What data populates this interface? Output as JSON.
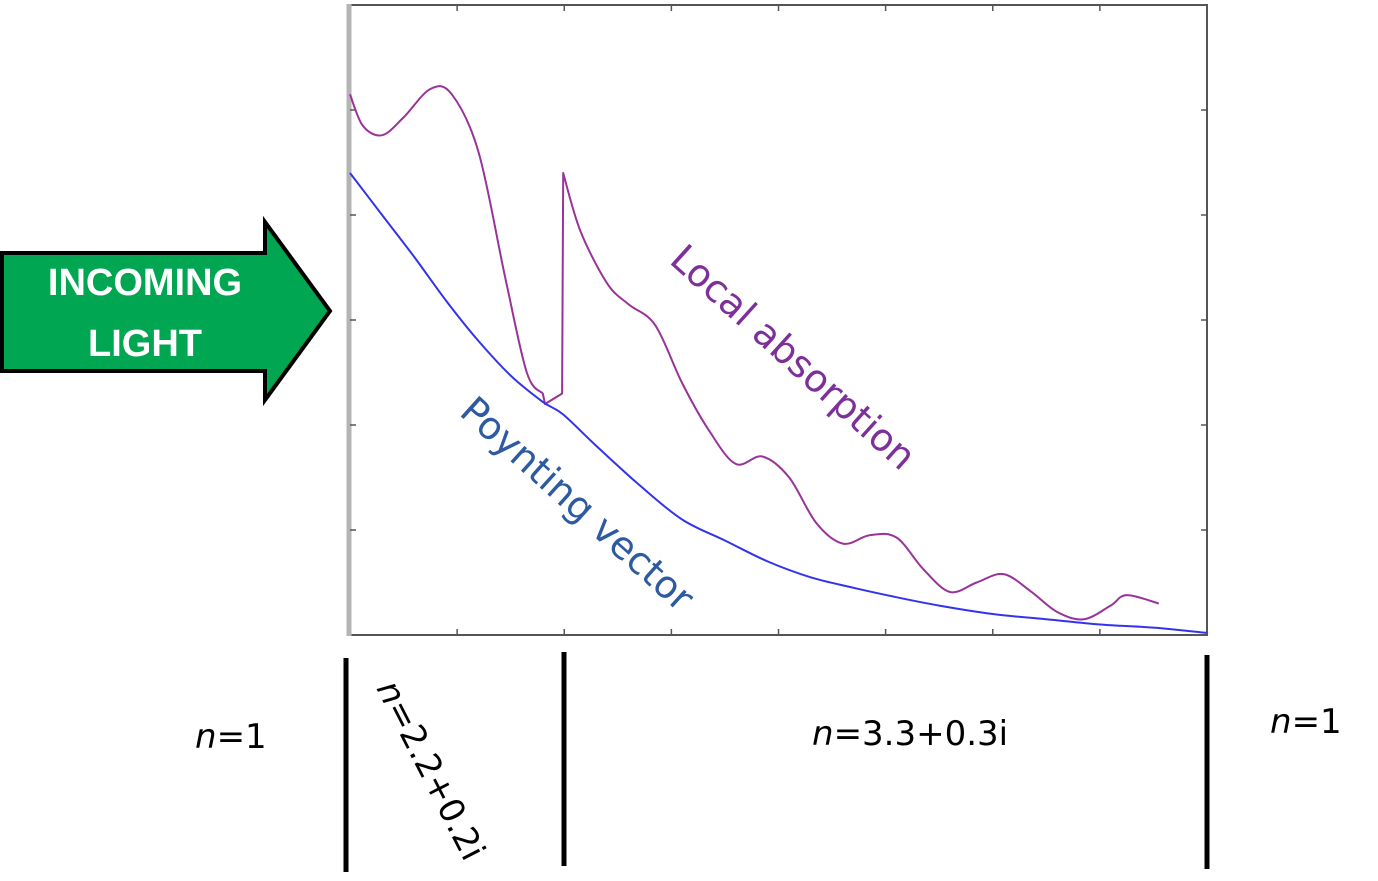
{
  "arrow": {
    "line1": "INCOMING",
    "line2": "LIGHT",
    "fill_color": "#00a651",
    "stroke_color": "#000000"
  },
  "chart_data": {
    "type": "line",
    "title": "",
    "xlabel": "",
    "ylabel": "",
    "grid": false,
    "axis_ticks_labeled": false,
    "xlim": [
      0,
      8
    ],
    "ylim": [
      0,
      6
    ],
    "series": [
      {
        "name": "Local absorption",
        "color": "#993399",
        "points": [
          [
            0.0,
            5.15
          ],
          [
            0.12,
            4.85
          ],
          [
            0.3,
            4.76
          ],
          [
            0.5,
            4.93
          ],
          [
            0.75,
            5.2
          ],
          [
            0.95,
            5.15
          ],
          [
            1.2,
            4.6
          ],
          [
            1.45,
            3.4
          ],
          [
            1.65,
            2.5
          ],
          [
            1.8,
            2.3
          ],
          [
            1.82,
            2.2
          ],
          [
            1.98,
            2.3
          ],
          [
            1.99,
            4.4
          ],
          [
            2.15,
            3.85
          ],
          [
            2.4,
            3.35
          ],
          [
            2.6,
            3.15
          ],
          [
            2.85,
            2.95
          ],
          [
            3.1,
            2.4
          ],
          [
            3.35,
            1.95
          ],
          [
            3.6,
            1.63
          ],
          [
            3.85,
            1.7
          ],
          [
            4.1,
            1.5
          ],
          [
            4.35,
            1.07
          ],
          [
            4.6,
            0.87
          ],
          [
            4.85,
            0.95
          ],
          [
            5.1,
            0.93
          ],
          [
            5.35,
            0.63
          ],
          [
            5.6,
            0.41
          ],
          [
            5.85,
            0.5
          ],
          [
            6.1,
            0.58
          ],
          [
            6.35,
            0.42
          ],
          [
            6.6,
            0.22
          ],
          [
            6.85,
            0.15
          ],
          [
            7.1,
            0.28
          ],
          [
            7.25,
            0.38
          ],
          [
            7.55,
            0.3
          ]
        ]
      },
      {
        "name": "Poynting vector",
        "color": "#3333ee",
        "points": [
          [
            0.0,
            4.4
          ],
          [
            0.3,
            4.0
          ],
          [
            0.6,
            3.6
          ],
          [
            0.9,
            3.18
          ],
          [
            1.2,
            2.8
          ],
          [
            1.5,
            2.47
          ],
          [
            1.8,
            2.22
          ],
          [
            1.99,
            2.1
          ],
          [
            2.3,
            1.8
          ],
          [
            2.7,
            1.43
          ],
          [
            3.1,
            1.1
          ],
          [
            3.5,
            0.9
          ],
          [
            3.9,
            0.7
          ],
          [
            4.3,
            0.55
          ],
          [
            4.7,
            0.45
          ],
          [
            5.1,
            0.36
          ],
          [
            5.5,
            0.28
          ],
          [
            6.0,
            0.2
          ],
          [
            6.5,
            0.15
          ],
          [
            7.0,
            0.1
          ],
          [
            7.5,
            0.07
          ],
          [
            8.0,
            0.02
          ]
        ]
      }
    ]
  },
  "curve_labels": {
    "absorption": "Local absorption",
    "poynting": "Poynting vector"
  },
  "regions": [
    {
      "italic": "n",
      "rest": "=1"
    },
    {
      "italic": "n",
      "rest": "=2.2+0.2i"
    },
    {
      "italic": "n",
      "rest": "=3.3+0.3i"
    },
    {
      "italic": "n",
      "rest": "=1"
    }
  ]
}
